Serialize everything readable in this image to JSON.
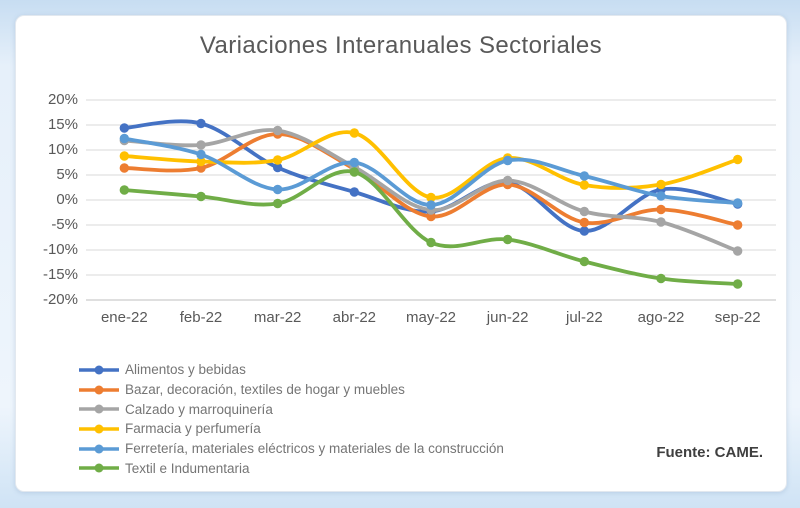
{
  "source_note": "Fuente: CAME.",
  "colors": {
    "page_background": "#d9e8f7",
    "card_background": "#ffffff",
    "title_text": "#595959",
    "axis_text": "#595959",
    "legend_text": "#757575",
    "gridline": "#d9d9d9",
    "axis_line": "#bfbfbf"
  },
  "chart_data": {
    "type": "line",
    "title": "Variaciones Interanuales Sectoriales",
    "unit": "%",
    "categories": [
      "ene-22",
      "feb-22",
      "mar-22",
      "abr-22",
      "may-22",
      "jun-22",
      "jul-22",
      "ago-22",
      "sep-22"
    ],
    "ylim": [
      -20,
      20
    ],
    "ytick_step": 5,
    "ytick_labels": [
      "20%",
      "15%",
      "10%",
      "5%",
      "0%",
      "-5%",
      "-10%",
      "-15%",
      "-20%"
    ],
    "grid": true,
    "smooth_lines": true,
    "legend_position": "bottom-left",
    "series": [
      {
        "name": "Alimentos y bebidas",
        "color": "#4472C4",
        "values": [
          14.4,
          15.3,
          6.5,
          1.6,
          -2.3,
          3.5,
          -6.2,
          2.1,
          -0.8
        ]
      },
      {
        "name": "Bazar, decoración, textiles de hogar y muebles",
        "color": "#ED7D31",
        "values": [
          6.4,
          6.4,
          13.2,
          6.2,
          -3.3,
          3.1,
          -4.5,
          -1.9,
          -5.0
        ]
      },
      {
        "name": "Calzado y marroquinería",
        "color": "#A5A5A5",
        "values": [
          11.9,
          11.0,
          13.9,
          6.6,
          -2.0,
          3.9,
          -2.3,
          -4.4,
          -10.2
        ]
      },
      {
        "name": "Farmacia y perfumería",
        "color": "#FFC000",
        "values": [
          8.8,
          7.7,
          8.0,
          13.4,
          0.5,
          8.4,
          3.0,
          3.1,
          8.1
        ]
      },
      {
        "name": "Ferretería, materiales eléctricos y materiales de la construcción",
        "color": "#5B9BD5",
        "values": [
          12.3,
          9.1,
          2.1,
          7.5,
          -1.0,
          7.9,
          4.8,
          0.8,
          -0.6
        ]
      },
      {
        "name": "Textil e Indumentaria",
        "color": "#70AD47",
        "values": [
          2.0,
          0.7,
          -0.7,
          5.6,
          -8.5,
          -7.9,
          -12.3,
          -15.7,
          -16.8
        ]
      }
    ]
  }
}
